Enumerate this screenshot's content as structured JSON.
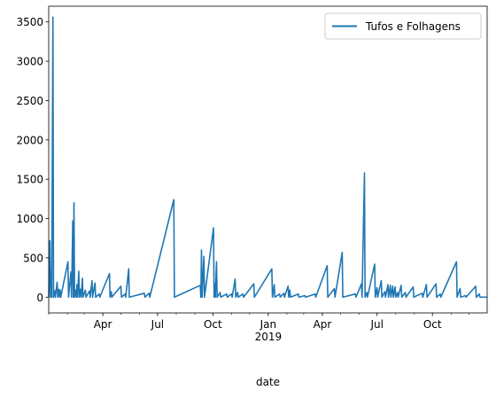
{
  "chart_data": {
    "type": "line",
    "title": "",
    "xlabel": "date",
    "ylabel": "",
    "x_range": [
      "2018-01-01",
      "2019-12-31"
    ],
    "ylim": [
      -200,
      3700
    ],
    "y_ticks": [
      0,
      500,
      1000,
      1500,
      2000,
      2500,
      3000,
      3500
    ],
    "x_ticks": [
      {
        "date": "2018-04-01",
        "label": "Apr",
        "sublabel": ""
      },
      {
        "date": "2018-07-01",
        "label": "Jul",
        "sublabel": ""
      },
      {
        "date": "2018-10-01",
        "label": "Oct",
        "sublabel": ""
      },
      {
        "date": "2019-01-01",
        "label": "Jan",
        "sublabel": "2019"
      },
      {
        "date": "2019-04-01",
        "label": "Apr",
        "sublabel": ""
      },
      {
        "date": "2019-07-01",
        "label": "Jul",
        "sublabel": ""
      },
      {
        "date": "2019-10-01",
        "label": "Oct",
        "sublabel": ""
      }
    ],
    "legend_position": "top-right",
    "grid": false,
    "series": [
      {
        "name": "Tufos e Folhagens",
        "color": "#1f77b4",
        "points": [
          [
            "2018-01-01",
            0
          ],
          [
            "2018-01-03",
            720
          ],
          [
            "2018-01-04",
            0
          ],
          [
            "2018-01-05",
            330
          ],
          [
            "2018-01-06",
            0
          ],
          [
            "2018-01-08",
            3560
          ],
          [
            "2018-01-09",
            0
          ],
          [
            "2018-01-11",
            80
          ],
          [
            "2018-01-12",
            0
          ],
          [
            "2018-01-15",
            190
          ],
          [
            "2018-01-16",
            0
          ],
          [
            "2018-01-18",
            100
          ],
          [
            "2018-01-19",
            0
          ],
          [
            "2018-01-20",
            90
          ],
          [
            "2018-01-21",
            0
          ],
          [
            "2018-02-02",
            450
          ],
          [
            "2018-02-03",
            0
          ],
          [
            "2018-02-07",
            320
          ],
          [
            "2018-02-08",
            0
          ],
          [
            "2018-02-10",
            970
          ],
          [
            "2018-02-11",
            0
          ],
          [
            "2018-02-12",
            1200
          ],
          [
            "2018-02-13",
            0
          ],
          [
            "2018-02-15",
            90
          ],
          [
            "2018-02-16",
            0
          ],
          [
            "2018-02-17",
            160
          ],
          [
            "2018-02-18",
            0
          ],
          [
            "2018-02-20",
            330
          ],
          [
            "2018-02-21",
            0
          ],
          [
            "2018-02-23",
            100
          ],
          [
            "2018-02-24",
            0
          ],
          [
            "2018-02-26",
            240
          ],
          [
            "2018-02-27",
            0
          ],
          [
            "2018-03-03",
            90
          ],
          [
            "2018-03-04",
            0
          ],
          [
            "2018-03-10",
            80
          ],
          [
            "2018-03-11",
            0
          ],
          [
            "2018-03-14",
            210
          ],
          [
            "2018-03-15",
            0
          ],
          [
            "2018-03-19",
            180
          ],
          [
            "2018-03-20",
            0
          ],
          [
            "2018-03-26",
            40
          ],
          [
            "2018-03-27",
            0
          ],
          [
            "2018-04-12",
            300
          ],
          [
            "2018-04-13",
            0
          ],
          [
            "2018-04-15",
            70
          ],
          [
            "2018-04-16",
            0
          ],
          [
            "2018-05-01",
            140
          ],
          [
            "2018-05-02",
            0
          ],
          [
            "2018-05-08",
            40
          ],
          [
            "2018-05-09",
            0
          ],
          [
            "2018-05-14",
            360
          ],
          [
            "2018-05-15",
            0
          ],
          [
            "2018-06-09",
            50
          ],
          [
            "2018-06-10",
            0
          ],
          [
            "2018-06-17",
            50
          ],
          [
            "2018-06-18",
            0
          ],
          [
            "2018-07-28",
            1240
          ],
          [
            "2018-07-29",
            0
          ],
          [
            "2018-09-10",
            150
          ],
          [
            "2018-09-11",
            0
          ],
          [
            "2018-09-12",
            600
          ],
          [
            "2018-09-13",
            0
          ],
          [
            "2018-09-16",
            520
          ],
          [
            "2018-09-17",
            0
          ],
          [
            "2018-10-02",
            880
          ],
          [
            "2018-10-03",
            0
          ],
          [
            "2018-10-04",
            170
          ],
          [
            "2018-10-05",
            0
          ],
          [
            "2018-10-07",
            450
          ],
          [
            "2018-10-08",
            0
          ],
          [
            "2018-10-13",
            60
          ],
          [
            "2018-10-14",
            0
          ],
          [
            "2018-10-24",
            40
          ],
          [
            "2018-10-25",
            0
          ],
          [
            "2018-11-01",
            40
          ],
          [
            "2018-11-02",
            0
          ],
          [
            "2018-11-07",
            230
          ],
          [
            "2018-11-08",
            0
          ],
          [
            "2018-11-11",
            60
          ],
          [
            "2018-11-12",
            0
          ],
          [
            "2018-11-20",
            40
          ],
          [
            "2018-11-21",
            0
          ],
          [
            "2018-12-08",
            170
          ],
          [
            "2018-12-09",
            0
          ],
          [
            "2019-01-07",
            360
          ],
          [
            "2019-01-08",
            0
          ],
          [
            "2019-01-11",
            160
          ],
          [
            "2019-01-12",
            0
          ],
          [
            "2019-01-20",
            40
          ],
          [
            "2019-01-21",
            0
          ],
          [
            "2019-01-27",
            50
          ],
          [
            "2019-01-28",
            0
          ],
          [
            "2019-02-03",
            140
          ],
          [
            "2019-02-04",
            0
          ],
          [
            "2019-02-06",
            90
          ],
          [
            "2019-02-07",
            0
          ],
          [
            "2019-02-20",
            40
          ],
          [
            "2019-02-21",
            0
          ],
          [
            "2019-03-03",
            20
          ],
          [
            "2019-03-04",
            0
          ],
          [
            "2019-03-20",
            40
          ],
          [
            "2019-03-21",
            0
          ],
          [
            "2019-04-09",
            400
          ],
          [
            "2019-04-10",
            0
          ],
          [
            "2019-04-21",
            110
          ],
          [
            "2019-04-22",
            0
          ],
          [
            "2019-05-04",
            570
          ],
          [
            "2019-05-05",
            0
          ],
          [
            "2019-05-26",
            40
          ],
          [
            "2019-05-27",
            0
          ],
          [
            "2019-06-05",
            170
          ],
          [
            "2019-06-06",
            0
          ],
          [
            "2019-06-10",
            1580
          ],
          [
            "2019-06-11",
            0
          ],
          [
            "2019-06-14",
            60
          ],
          [
            "2019-06-15",
            0
          ],
          [
            "2019-06-27",
            420
          ],
          [
            "2019-06-28",
            0
          ],
          [
            "2019-07-01",
            120
          ],
          [
            "2019-07-02",
            0
          ],
          [
            "2019-07-08",
            210
          ],
          [
            "2019-07-09",
            0
          ],
          [
            "2019-07-14",
            70
          ],
          [
            "2019-07-15",
            0
          ],
          [
            "2019-07-19",
            160
          ],
          [
            "2019-07-20",
            0
          ],
          [
            "2019-07-23",
            150
          ],
          [
            "2019-07-24",
            0
          ],
          [
            "2019-07-27",
            140
          ],
          [
            "2019-07-28",
            0
          ],
          [
            "2019-07-31",
            130
          ],
          [
            "2019-08-01",
            0
          ],
          [
            "2019-08-04",
            60
          ],
          [
            "2019-08-05",
            0
          ],
          [
            "2019-08-10",
            150
          ],
          [
            "2019-08-11",
            0
          ],
          [
            "2019-08-17",
            60
          ],
          [
            "2019-08-18",
            0
          ],
          [
            "2019-08-30",
            130
          ],
          [
            "2019-08-31",
            0
          ],
          [
            "2019-09-14",
            50
          ],
          [
            "2019-09-15",
            0
          ],
          [
            "2019-09-21",
            160
          ],
          [
            "2019-09-22",
            0
          ],
          [
            "2019-10-07",
            170
          ],
          [
            "2019-10-08",
            0
          ],
          [
            "2019-10-14",
            40
          ],
          [
            "2019-10-15",
            0
          ],
          [
            "2019-11-10",
            450
          ],
          [
            "2019-11-11",
            0
          ],
          [
            "2019-11-16",
            110
          ],
          [
            "2019-11-17",
            0
          ],
          [
            "2019-11-25",
            20
          ],
          [
            "2019-11-26",
            0
          ],
          [
            "2019-12-12",
            140
          ],
          [
            "2019-12-13",
            0
          ],
          [
            "2019-12-18",
            40
          ],
          [
            "2019-12-19",
            0
          ],
          [
            "2019-12-31",
            0
          ]
        ]
      }
    ]
  }
}
